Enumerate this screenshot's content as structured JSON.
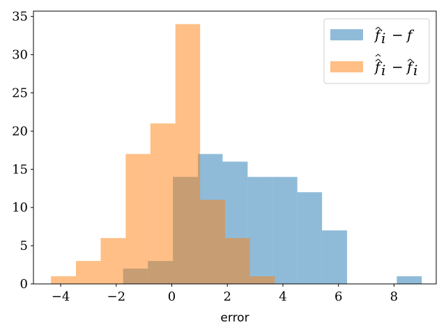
{
  "chart_data": {
    "type": "bar",
    "xlabel": "error",
    "ylabel": "",
    "title": "",
    "xlim": [
      -4.98,
      9.52
    ],
    "ylim": [
      0,
      35.7
    ],
    "xticks": [
      -4,
      -2,
      0,
      2,
      4,
      6,
      8
    ],
    "xtick_labels": [
      "−4",
      "−2",
      "0",
      "2",
      "4",
      "6",
      "8"
    ],
    "yticks": [
      0,
      5,
      10,
      15,
      20,
      25,
      30,
      35
    ],
    "ytick_labels": [
      "0",
      "5",
      "10",
      "15",
      "20",
      "25",
      "30",
      "35"
    ],
    "grid": false,
    "legend_position": "top-right",
    "series": [
      {
        "name": "̂f_i − f",
        "color": "#1f77b4",
        "alpha": 0.5,
        "bin_edges": [
          -1.75,
          -0.86,
          0.04,
          0.94,
          1.83,
          2.73,
          3.62,
          4.52,
          5.41,
          6.31,
          7.2,
          8.1,
          9.0
        ],
        "counts": [
          2,
          3,
          14,
          17,
          16,
          14,
          14,
          12,
          7,
          0,
          0,
          1
        ]
      },
      {
        "name": "̂̂f_i − ̂f_i",
        "color": "#ff7f0e",
        "alpha": 0.5,
        "bin_edges": [
          -4.35,
          -3.45,
          -2.56,
          -1.66,
          -0.77,
          0.13,
          1.02,
          1.92,
          2.81,
          3.71
        ],
        "counts": [
          1,
          3,
          6,
          17,
          21,
          34,
          11,
          6,
          1
        ]
      }
    ],
    "legend_entries": [
      {
        "base": "f",
        "sub": "i",
        "hats": 1,
        "rhs": "f",
        "rhs_hats": 0
      },
      {
        "base": "f",
        "sub": "i",
        "hats": 2,
        "rhs": "f",
        "rhs_hats": 1,
        "rhs_sub": "i"
      }
    ]
  }
}
